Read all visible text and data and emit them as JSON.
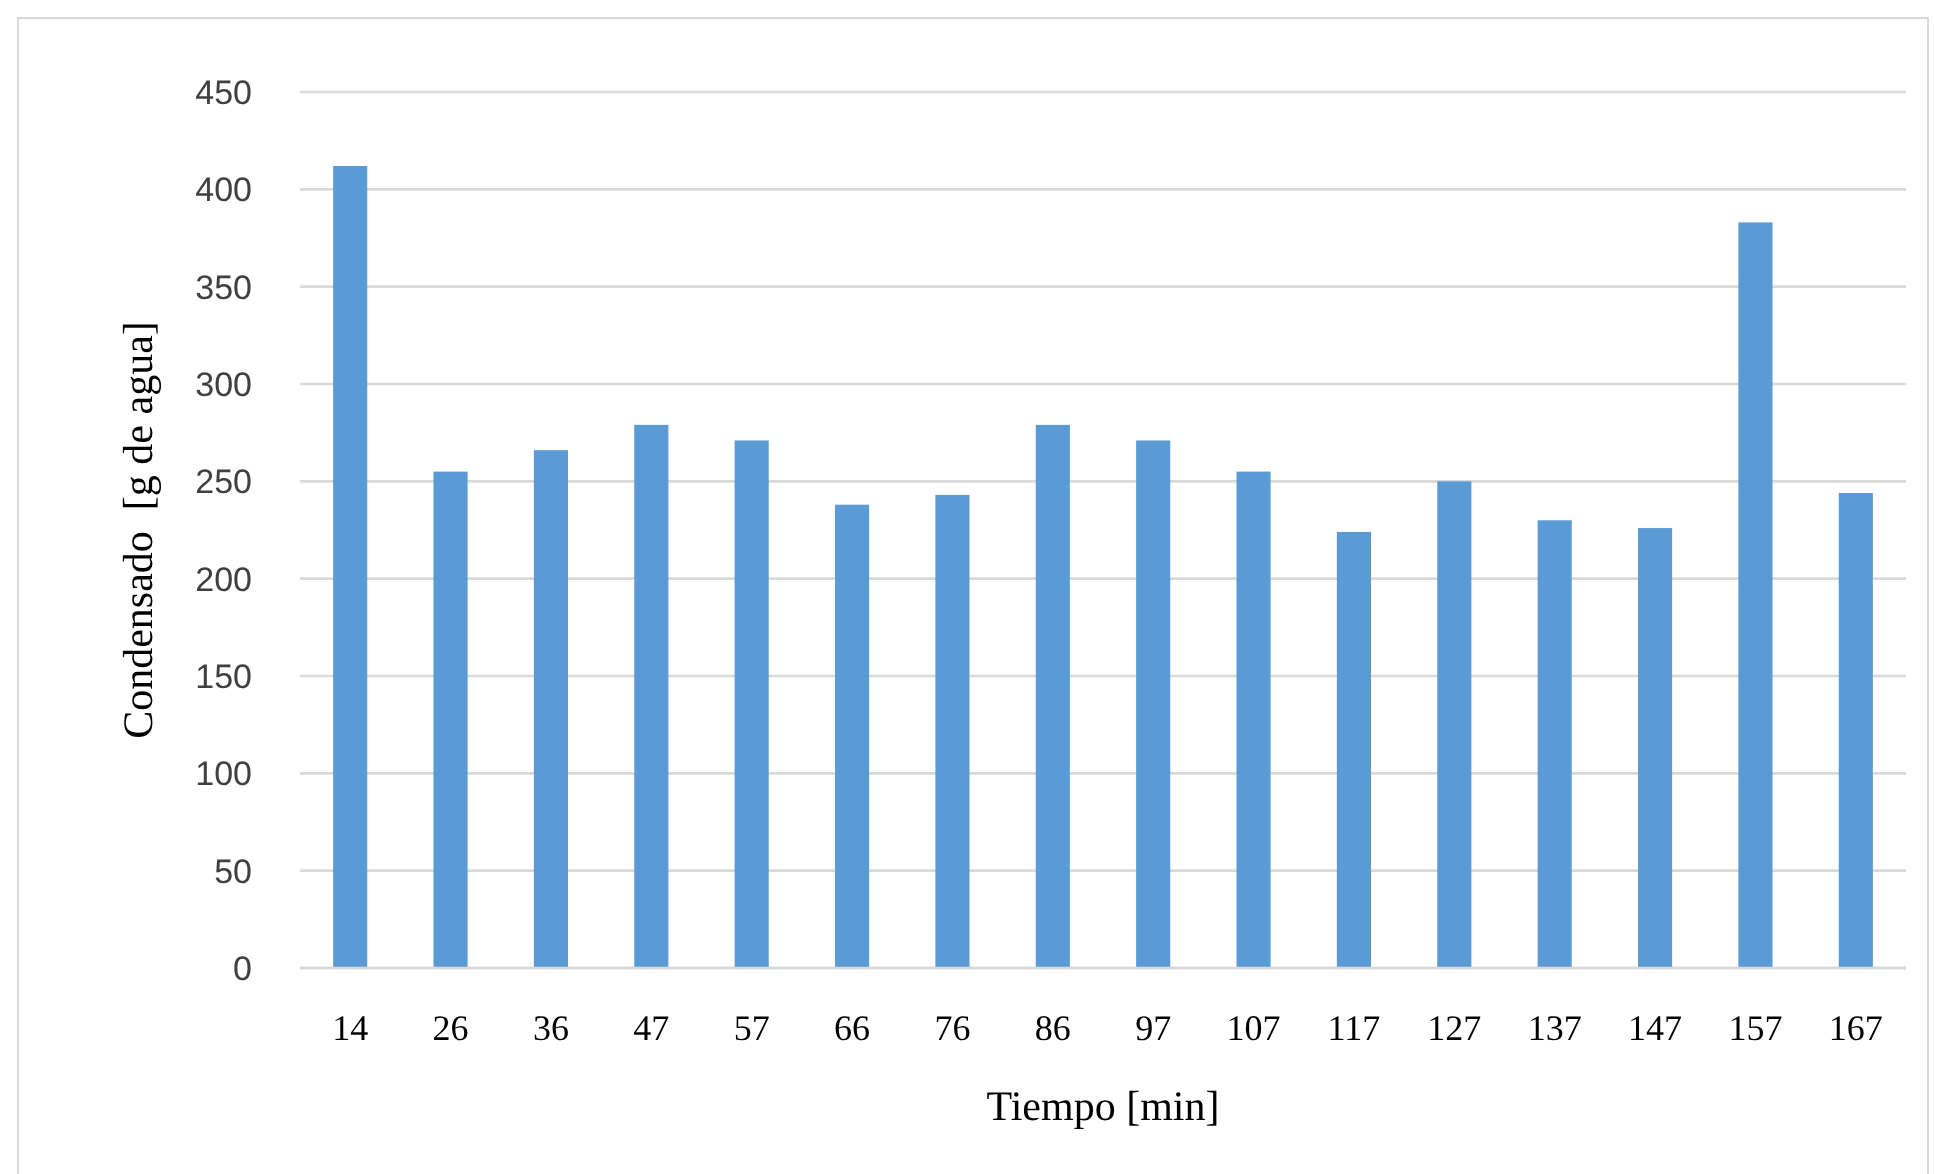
{
  "chart_data": {
    "type": "bar",
    "xlabel": "Tiempo [min]",
    "ylabel": "Condensado  [g de agua]",
    "categories": [
      "14",
      "26",
      "36",
      "47",
      "57",
      "66",
      "76",
      "86",
      "97",
      "107",
      "117",
      "127",
      "137",
      "147",
      "157",
      "167"
    ],
    "values": [
      412,
      255,
      266,
      279,
      271,
      238,
      243,
      279,
      271,
      255,
      224,
      250,
      230,
      226,
      383,
      244
    ],
    "color": "#5b9bd5",
    "ylim": [
      0,
      450
    ],
    "yticks": [
      0,
      50,
      100,
      150,
      200,
      250,
      300,
      350,
      400,
      450
    ],
    "grid": "y"
  }
}
